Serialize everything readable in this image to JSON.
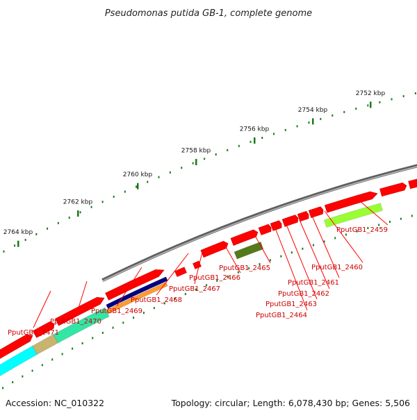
{
  "title": "Pseudomonas putida GB-1, complete genome",
  "footer": {
    "accession": "Accession: NC_010322",
    "topology": "Topology: circular; Length: 6,078,430 bp; Genes: 5,506"
  },
  "ticks": [
    "2752 kbp",
    "2754 kbp",
    "2756 kbp",
    "2758 kbp",
    "2760 kbp",
    "2762 kbp",
    "2764 kbp"
  ],
  "genes": [
    {
      "id": "PputGB1_2459",
      "color": "#ff0000"
    },
    {
      "id": "PputGB1_2460",
      "color": "#ff0000"
    },
    {
      "id": "PputGB1_2461",
      "color": "#ff0000"
    },
    {
      "id": "PputGB1_2462",
      "color": "#ff0000"
    },
    {
      "id": "PputGB1_2463",
      "color": "#ff0000"
    },
    {
      "id": "PputGB1_2464",
      "color": "#ff0000"
    },
    {
      "id": "PputGB1_2465",
      "color": "#ff0000"
    },
    {
      "id": "PputGB1_2466",
      "color": "#ff0000"
    },
    {
      "id": "PputGB1_2467",
      "color": "#ff0000"
    },
    {
      "id": "PputGB1_2468",
      "color": "#ff0000"
    },
    {
      "id": "PputGB1_2469",
      "color": "#ff0000"
    },
    {
      "id": "PputGB1_2470",
      "color": "#ff0000"
    },
    {
      "id": "PputGB1_2471",
      "color": "#ff0000"
    }
  ],
  "feature_colors": {
    "backbone": "#8a8a8a",
    "gene": "#ff0000",
    "tick": "#1a7a1a",
    "yellowgreen_feature": "#99ff33",
    "olive_feature": "#557a1a",
    "navy_feature": "#000080",
    "orange_feature": "#ff9933",
    "teal_feature": "#33e6a6",
    "cyan_feature": "#00ffff",
    "khaki_feature": "#c8b46e"
  }
}
